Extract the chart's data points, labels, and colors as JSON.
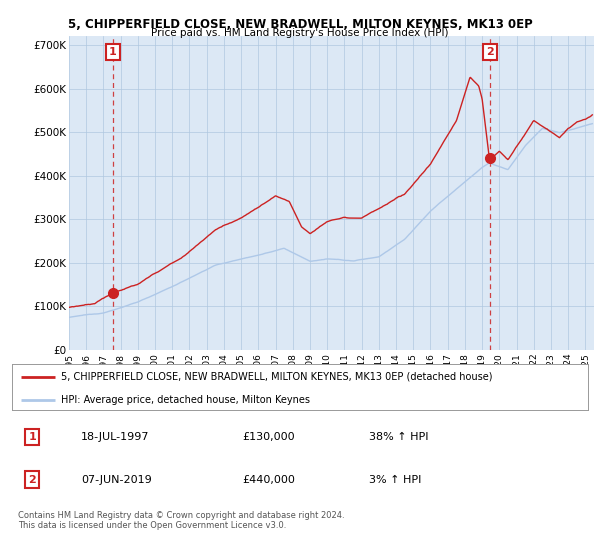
{
  "title": "5, CHIPPERFIELD CLOSE, NEW BRADWELL, MILTON KEYNES, MK13 0EP",
  "subtitle": "Price paid vs. HM Land Registry's House Price Index (HPI)",
  "ylabel_ticks": [
    "£0",
    "£100K",
    "£200K",
    "£300K",
    "£400K",
    "£500K",
    "£600K",
    "£700K"
  ],
  "ylim": [
    0,
    720000
  ],
  "xlim_start": 1995.0,
  "xlim_end": 2025.5,
  "transaction1_date": 1997.54,
  "transaction1_price": 130000,
  "transaction1_label": "1",
  "transaction2_date": 2019.43,
  "transaction2_price": 440000,
  "transaction2_label": "2",
  "legend_line1": "5, CHIPPERFIELD CLOSE, NEW BRADWELL, MILTON KEYNES, MK13 0EP (detached house)",
  "legend_line2": "HPI: Average price, detached house, Milton Keynes",
  "table_row1": [
    "1",
    "18-JUL-1997",
    "£130,000",
    "38% ↑ HPI"
  ],
  "table_row2": [
    "2",
    "07-JUN-2019",
    "£440,000",
    "3% ↑ HPI"
  ],
  "footnote": "Contains HM Land Registry data © Crown copyright and database right 2024.\nThis data is licensed under the Open Government Licence v3.0.",
  "hpi_color": "#aec8e8",
  "price_color": "#cc2222",
  "marker_color": "#cc2222",
  "bg_color": "#ffffff",
  "chart_bg": "#dce8f5",
  "grid_color": "#b0c8e0",
  "annotation_box_color": "#cc2222"
}
